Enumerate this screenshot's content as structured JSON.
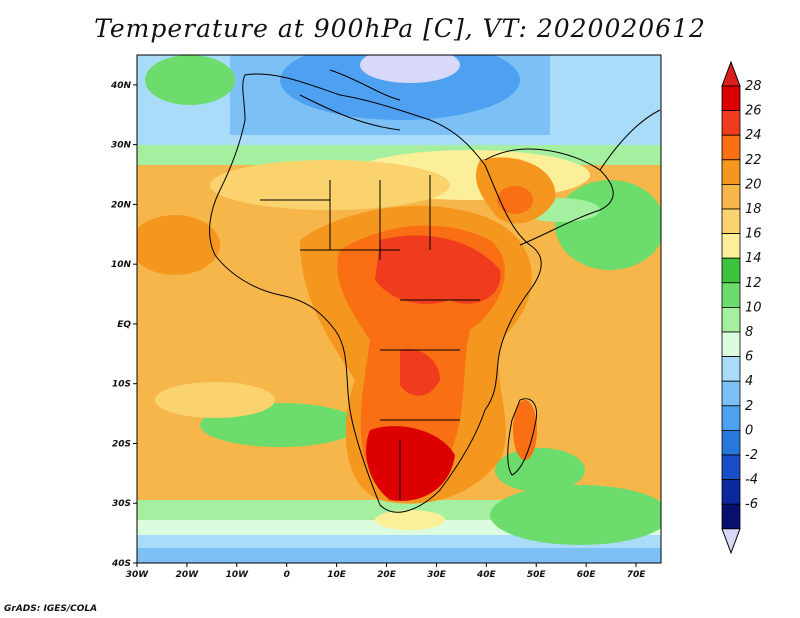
{
  "title": "Temperature at 900hPa [C], VT: 2020020612",
  "credit": "GrADS: IGES/COLA",
  "map": {
    "lat_labels": [
      "40N",
      "30N",
      "20N",
      "10N",
      "EQ",
      "10S",
      "20S",
      "30S",
      "40S"
    ],
    "lon_labels": [
      "30W",
      "20W",
      "10W",
      "0",
      "10E",
      "20E",
      "30E",
      "40E",
      "50E",
      "60E",
      "70E"
    ],
    "lat_range": [
      -40,
      45
    ],
    "lon_range": [
      -30,
      75
    ]
  },
  "colorbar": {
    "labels": [
      "28",
      "26",
      "24",
      "22",
      "20",
      "18",
      "16",
      "14",
      "12",
      "10",
      "8",
      "6",
      "4",
      "2",
      "0",
      "-2",
      "-4",
      "-6"
    ],
    "colors": [
      "#dc0000",
      "#f03c1e",
      "#fa6e14",
      "#f5961e",
      "#f7b64a",
      "#fad36e",
      "#fcef9a",
      "#3cc23c",
      "#6cdc6c",
      "#a4f0a0",
      "#dcfce0",
      "#a8dcf8",
      "#7cc0f5",
      "#4ea0f0",
      "#2878dc",
      "#1a4ec8",
      "#0c28a0",
      "#08106e"
    ],
    "top_color": "#dc1e1e",
    "bottom_color": "#d8d8f8"
  }
}
